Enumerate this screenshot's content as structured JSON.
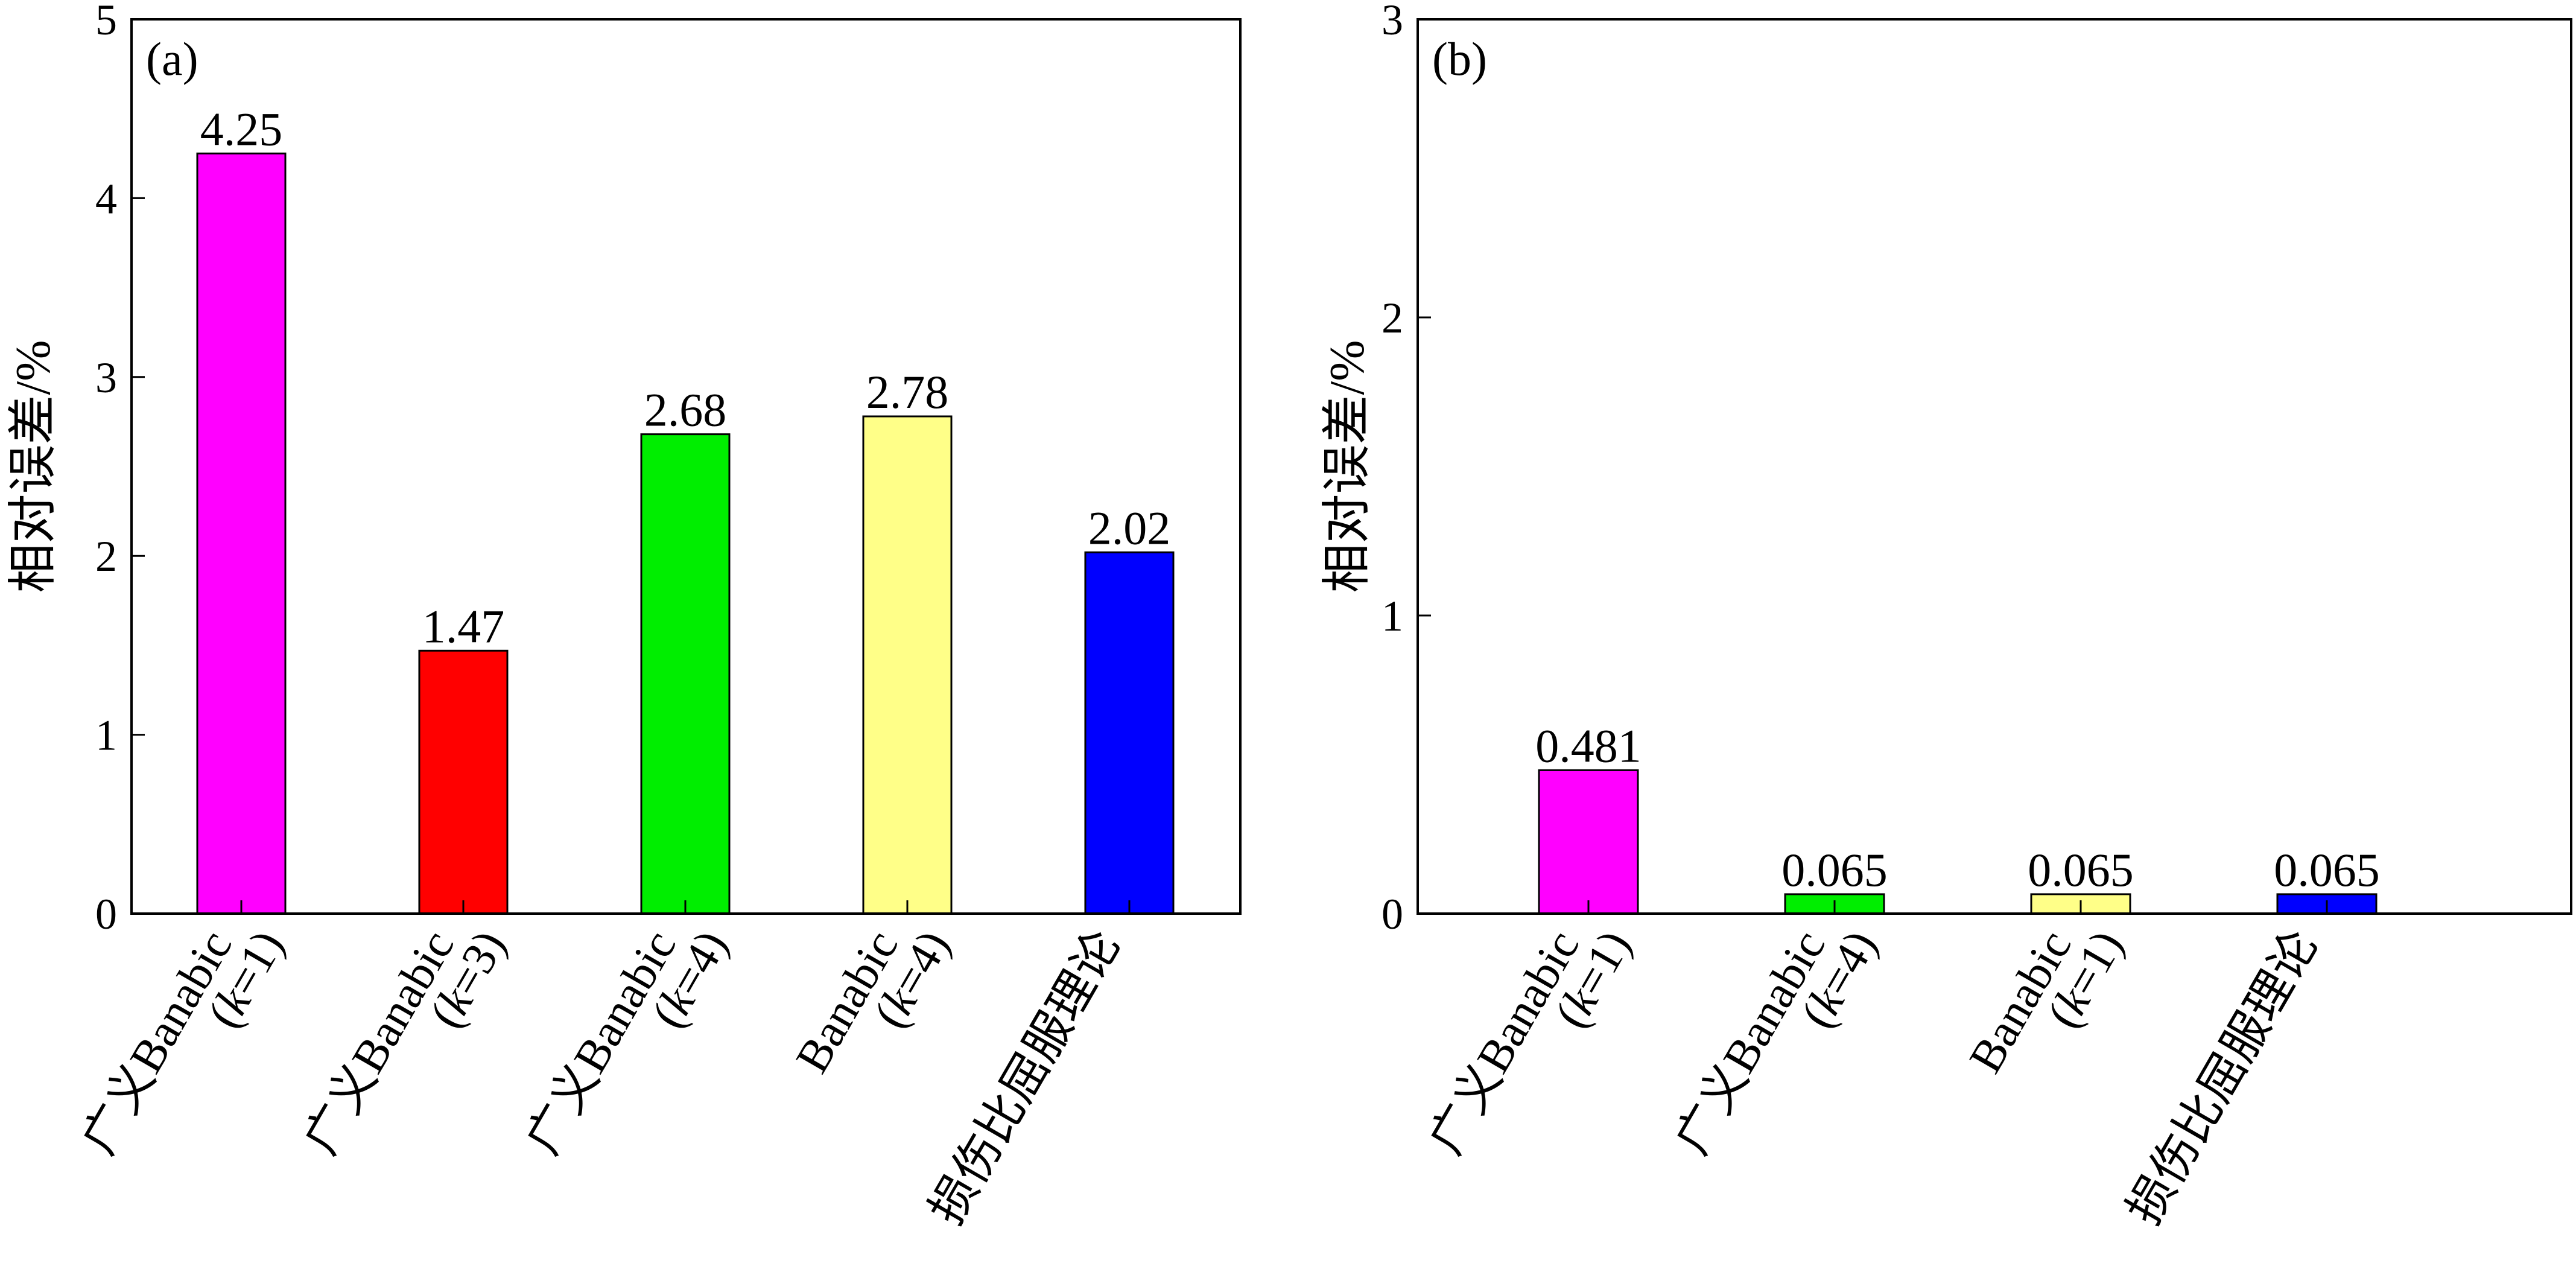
{
  "chart_data": [
    {
      "panel": "(a)",
      "type": "bar",
      "ylabel": "相对误差/%",
      "ylim": [
        0,
        5
      ],
      "yticks": [
        0,
        1,
        2,
        3,
        4,
        5
      ],
      "categories": [
        {
          "line1": "广义Banabic",
          "line2": "(k=1)"
        },
        {
          "line1": "广义Banabic",
          "line2": "(k=3)"
        },
        {
          "line1": "广义Banabic",
          "line2": "(k=4)"
        },
        {
          "line1": "Banabic",
          "line2": "(k=4)"
        },
        {
          "line1": "损伤比屈服理论",
          "line2": ""
        }
      ],
      "values": [
        4.25,
        1.47,
        2.68,
        2.78,
        2.02
      ],
      "value_labels": [
        "4.25",
        "1.47",
        "2.68",
        "2.78",
        "2.02"
      ],
      "colors": [
        "#ff00ff",
        "#ff0000",
        "#00ee00",
        "#ffff88",
        "#0000ff"
      ],
      "grid": false,
      "legend": "none"
    },
    {
      "panel": "(b)",
      "type": "bar",
      "ylabel": "相对误差/%",
      "ylim": [
        0,
        3
      ],
      "yticks": [
        0,
        1,
        2,
        3
      ],
      "categories": [
        {
          "line1": "广义Banabic",
          "line2": "(k=1)"
        },
        {
          "line1": "广义Banabic",
          "line2": "(k=4)"
        },
        {
          "line1": "Banabic",
          "line2": "(k=1)"
        },
        {
          "line1": "损伤比屈服理论",
          "line2": ""
        }
      ],
      "values": [
        0.481,
        0.065,
        0.065,
        0.065
      ],
      "value_labels": [
        "0.481",
        "0.065",
        "0.065",
        "0.065"
      ],
      "colors": [
        "#ff00ff",
        "#00ee00",
        "#ffff88",
        "#0000ff"
      ],
      "grid": false,
      "legend": "none"
    }
  ]
}
